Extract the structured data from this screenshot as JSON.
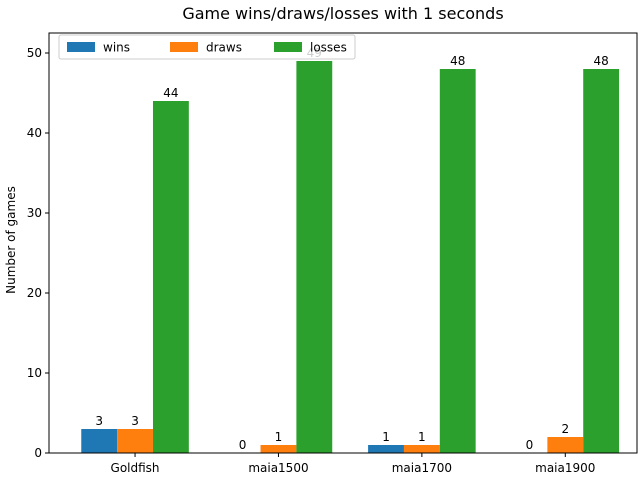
{
  "chart_data": {
    "type": "bar",
    "title": "Game wins/draws/losses with 1 seconds",
    "xlabel": "",
    "ylabel": "Number of games",
    "ylim": [
      0,
      52.5
    ],
    "yticks": [
      0,
      10,
      20,
      30,
      40,
      50
    ],
    "categories": [
      "Goldfish",
      "maia1500",
      "maia1700",
      "maia1900"
    ],
    "series": [
      {
        "name": "wins",
        "color": "#1f77b4",
        "values": [
          3,
          0,
          1,
          0
        ]
      },
      {
        "name": "draws",
        "color": "#ff7f0e",
        "values": [
          3,
          1,
          1,
          2
        ]
      },
      {
        "name": "losses",
        "color": "#2ca02c",
        "values": [
          44,
          49,
          48,
          48
        ]
      }
    ],
    "legend": {
      "placement": "top-left",
      "columns": 3
    },
    "grid": false
  }
}
